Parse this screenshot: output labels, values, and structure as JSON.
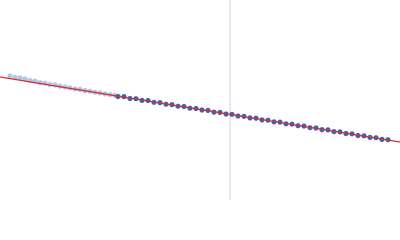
{
  "chart_data": {
    "type": "scatter",
    "xlim": [
      0,
      400
    ],
    "ylim": [
      0,
      200
    ],
    "vline": 230,
    "vline_color": "#c8d4e8",
    "series": [
      {
        "color": "#b4c6e2",
        "mode": "markers",
        "x": [
          10,
          15,
          20,
          25,
          30,
          35,
          40,
          45,
          50,
          55,
          60,
          65,
          70,
          75,
          80,
          85,
          90,
          95,
          100,
          105,
          110,
          115
        ],
        "values": [
          124.2,
          122.8,
          122.1,
          121.0,
          119.5,
          118.9,
          117.4,
          116.8,
          115.5,
          115.1,
          113.9,
          113.0,
          112.1,
          111.0,
          110.6,
          109.5,
          108.8,
          107.7,
          107.2,
          106.1,
          105.3,
          104.6
        ]
      },
      {
        "color": "#3a66b0",
        "mode": "markers",
        "x": [
          118,
          124,
          130,
          136,
          142,
          148,
          154,
          160,
          166,
          172,
          178,
          184,
          190,
          196,
          202,
          208,
          214,
          220,
          226,
          232,
          238,
          244,
          250,
          256,
          262,
          268,
          274,
          280,
          286,
          292,
          298,
          304,
          310,
          316,
          322,
          328,
          334,
          340,
          346,
          352,
          358,
          364,
          370,
          376,
          382,
          388
        ],
        "values": [
          103.5,
          103.4,
          101.5,
          101.3,
          99.6,
          99.5,
          97.7,
          97.4,
          95.8,
          95.4,
          93.8,
          93.5,
          91.8,
          91.5,
          90.0,
          89.6,
          87.9,
          87.6,
          86.0,
          85.7,
          84.0,
          83.7,
          82.1,
          81.8,
          80.1,
          79.8,
          78.2,
          77.9,
          76.2,
          75.9,
          74.3,
          74.0,
          72.3,
          72.0,
          70.4,
          70.1,
          68.4,
          68.1,
          66.5,
          66.2,
          64.5,
          64.2,
          62.6,
          62.3,
          60.6,
          60.3
        ]
      },
      {
        "color": "#d0303a",
        "mode": "line",
        "x": [
          0,
          400
        ],
        "values": [
          123,
          58
        ]
      }
    ]
  }
}
